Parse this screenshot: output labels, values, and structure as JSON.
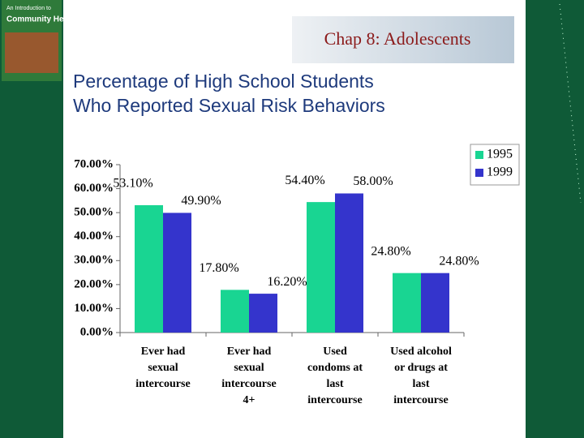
{
  "slide_title": "Chap 8: Adolescents",
  "heading": [
    "Percentage of High School Students",
    "Who Reported Sexual Risk Behaviors"
  ],
  "cover": {
    "subtitle": "An Introduction to",
    "title": "Community Health"
  },
  "chart_data": {
    "type": "bar",
    "categories": [
      "Ever had\nsexual\nintercourse",
      "Ever had\nsexual\nintercourse\n4+",
      "Used\ncondoms at\nlast\nintercourse",
      "Used alcohol\nor drugs at\nlast\nintercourse"
    ],
    "series": [
      {
        "name": "1995",
        "color": "#19d592",
        "values": [
          53.1,
          17.8,
          54.4,
          24.8
        ],
        "value_labels": [
          "53.10%",
          "17.80%",
          "54.40%",
          "24.80%"
        ]
      },
      {
        "name": "1999",
        "color": "#3434cc",
        "values": [
          49.9,
          16.2,
          58.0,
          24.8
        ],
        "value_labels": [
          "49.90%",
          "16.20%",
          "58.00%",
          "24.80%"
        ]
      }
    ],
    "ylim": [
      0,
      70
    ],
    "yticks": [
      {
        "value": 0,
        "label": "0.00%"
      },
      {
        "value": 10,
        "label": "10.00%"
      },
      {
        "value": 20,
        "label": "20.00%"
      },
      {
        "value": 30,
        "label": "30.00%"
      },
      {
        "value": 40,
        "label": "40.00%"
      },
      {
        "value": 50,
        "label": "50.00%"
      },
      {
        "value": 60,
        "label": "60.00%"
      },
      {
        "value": 70,
        "label": "70.00%"
      }
    ],
    "legend": "top-right"
  }
}
